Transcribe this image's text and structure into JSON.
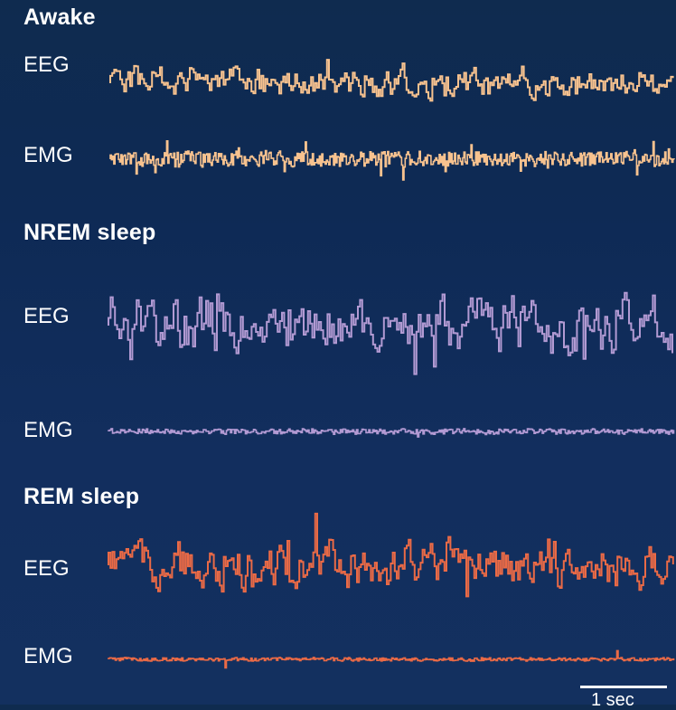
{
  "sections": [
    {
      "title": "Awake",
      "color": "#f7c28f",
      "eeg_label": "EEG",
      "emg_label": "EMG"
    },
    {
      "title": "NREM sleep",
      "color": "#b29ad3",
      "eeg_label": "EEG",
      "emg_label": "EMG"
    },
    {
      "title": "REM sleep",
      "color": "#ea6a46",
      "eeg_label": "EEG",
      "emg_label": "EMG"
    }
  ],
  "scale_bar": {
    "label": "1 sec"
  }
}
